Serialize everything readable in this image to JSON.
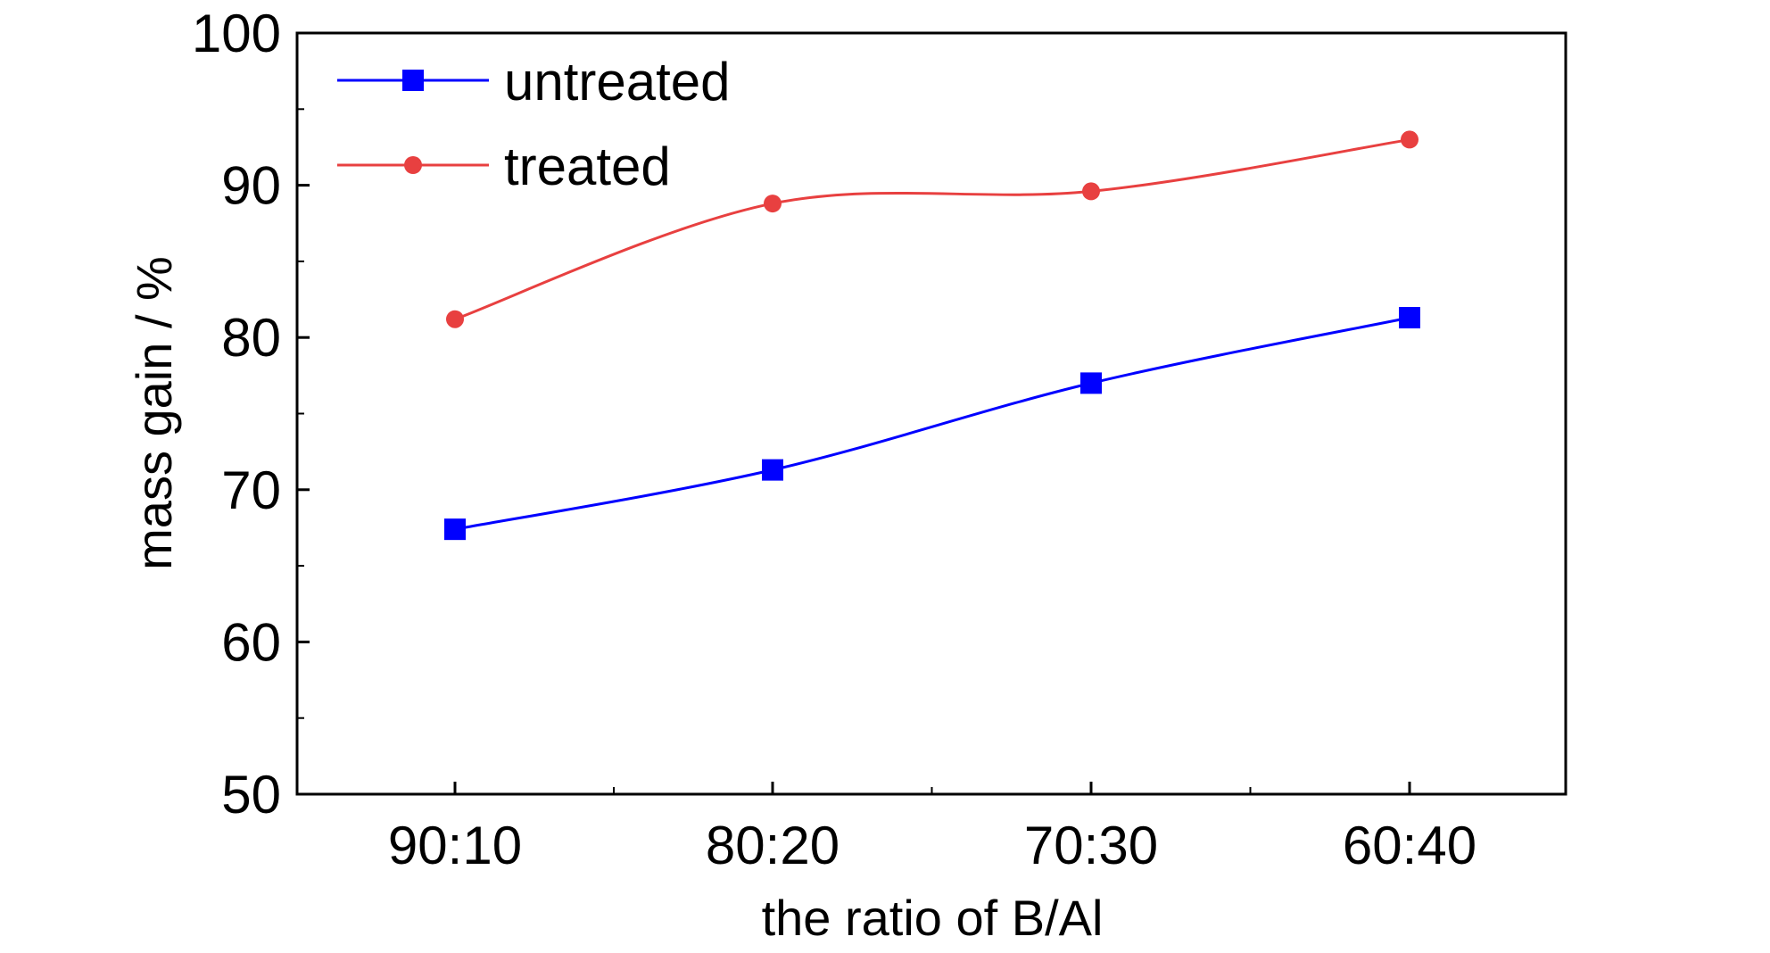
{
  "chart_data": {
    "type": "line",
    "title": "",
    "xlabel": "the ratio of B/Al",
    "ylabel": "mass gain / %",
    "categories": [
      "90:10",
      "80:20",
      "70:30",
      "60:40"
    ],
    "ylim": [
      50,
      100
    ],
    "yticks": [
      "50",
      "60",
      "70",
      "80",
      "90",
      "100"
    ],
    "grid": false,
    "legend_position": "top-left",
    "series": [
      {
        "name": "untreated",
        "values": [
          67.4,
          71.3,
          77.0,
          81.3
        ],
        "color": "#0000ff",
        "marker": "square"
      },
      {
        "name": "treated",
        "values": [
          81.2,
          88.8,
          89.6,
          93.0
        ],
        "color": "#e84040",
        "marker": "circle"
      }
    ]
  }
}
